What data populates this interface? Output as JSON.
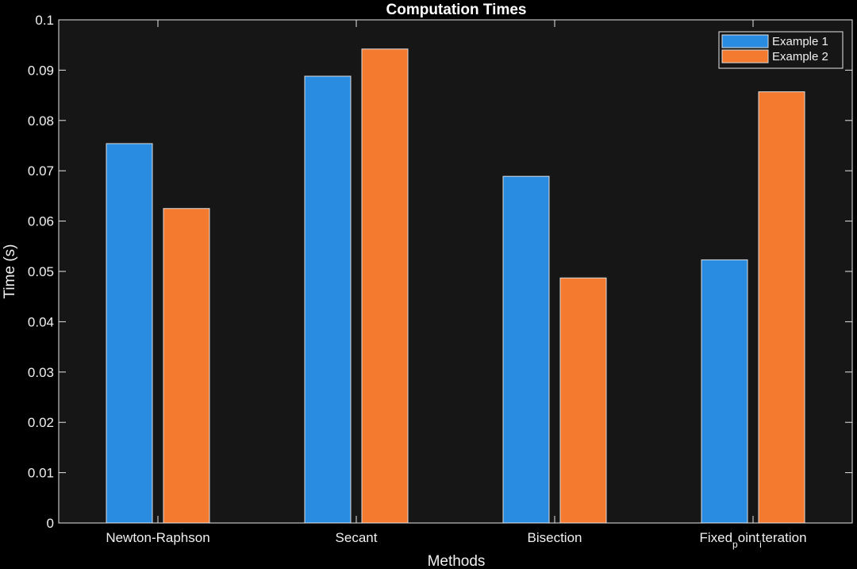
{
  "chart_data": {
    "type": "bar",
    "title": "Computation Times",
    "xlabel": "Methods",
    "ylabel": "Time (s)",
    "categories": [
      {
        "base": "Newton-Raphson"
      },
      {
        "base": "Secant"
      },
      {
        "base": "Bisection"
      },
      {
        "base": "Fixed",
        "sub1": "p",
        "mid": "oint",
        "sub2": "i",
        "tail": "teration"
      }
    ],
    "series": [
      {
        "name": "Example 1",
        "color": "#2a8ce0",
        "values": [
          0.0754,
          0.0888,
          0.0689,
          0.0523
        ]
      },
      {
        "name": "Example 2",
        "color": "#f47a2f",
        "values": [
          0.0625,
          0.0942,
          0.0487,
          0.0857
        ]
      }
    ],
    "ylim": [
      0,
      0.1
    ],
    "yticks": [
      "0",
      "0.01",
      "0.02",
      "0.03",
      "0.04",
      "0.05",
      "0.06",
      "0.07",
      "0.08",
      "0.09",
      "0.1"
    ],
    "legend_position": "top-right",
    "grid": false,
    "background": "#161616",
    "axis_color": "#e6e6e6"
  }
}
